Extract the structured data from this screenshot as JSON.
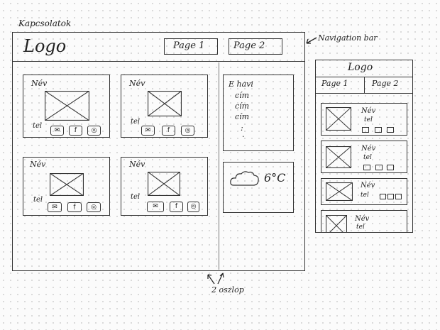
{
  "page_label": "Kapcsolatok",
  "header": {
    "logo": "Logo",
    "nav_items": [
      "Page 1",
      "Page 2"
    ],
    "annotation": "Navigation bar"
  },
  "cards": [
    {
      "name": "Név",
      "phone": "tel"
    },
    {
      "name": "Név",
      "phone": "tel"
    },
    {
      "name": "Név",
      "phone": "tel"
    },
    {
      "name": "Név",
      "phone": "tel"
    }
  ],
  "sidebar": {
    "list_title": "E havi",
    "list_items": [
      "cím",
      "cím",
      "cím",
      ":"
    ],
    "weather_temp": "6°C"
  },
  "footer_annotation": "2 oszlop",
  "mobile": {
    "logo": "Logo",
    "nav_items": [
      "Page 1",
      "Page 2"
    ],
    "cards": [
      {
        "name": "Név",
        "phone": "tel"
      },
      {
        "name": "Név",
        "phone": "tel"
      },
      {
        "name": "Név",
        "phone": "tel"
      },
      {
        "name": "Név",
        "phone": "tel"
      }
    ]
  },
  "icons": [
    "mail-icon",
    "facebook-icon",
    "instagram-icon",
    "cloud-icon",
    "image-placeholder-icon"
  ]
}
